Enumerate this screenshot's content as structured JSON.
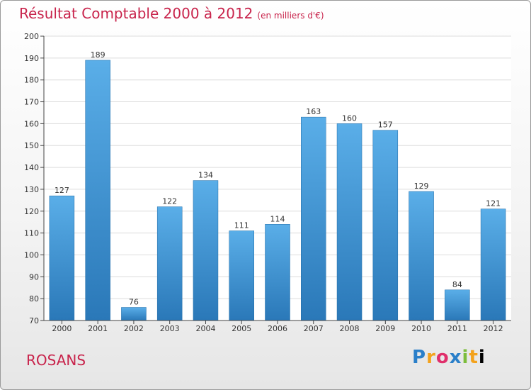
{
  "header": {
    "title": "Résultat Comptable 2000 à 2012",
    "unit": "(en milliers d'€)"
  },
  "footer": {
    "commune": "ROSANS",
    "logo_letters": [
      "P",
      "r",
      "o",
      "x",
      "i",
      "t",
      "i"
    ]
  },
  "colors": {
    "title": "#c8234b",
    "bar_top": "#5aaee8",
    "bar_bottom": "#2a78b8"
  },
  "chart_data": {
    "type": "bar",
    "title": "Résultat Comptable 2000 à 2012",
    "xlabel": "",
    "ylabel": "",
    "ylim": [
      70,
      200
    ],
    "yticks": [
      70,
      80,
      90,
      100,
      110,
      120,
      130,
      140,
      150,
      160,
      170,
      180,
      190,
      200
    ],
    "grid": true,
    "categories": [
      "2000",
      "2001",
      "2002",
      "2003",
      "2004",
      "2005",
      "2006",
      "2007",
      "2008",
      "2009",
      "2010",
      "2011",
      "2012"
    ],
    "values": [
      127,
      189,
      76,
      122,
      134,
      111,
      114,
      163,
      160,
      157,
      129,
      84,
      121
    ]
  }
}
